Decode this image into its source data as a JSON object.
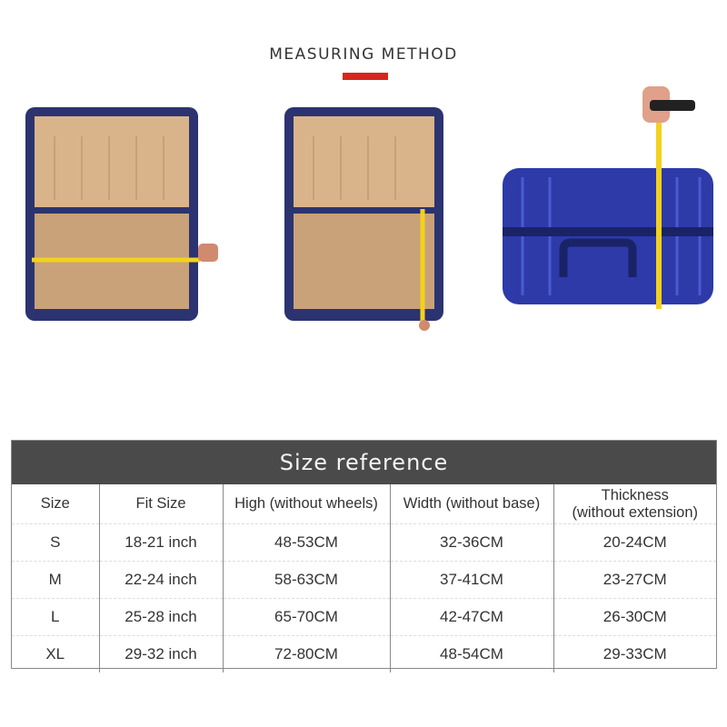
{
  "header": {
    "title": "MEASURING METHOD",
    "accent_color": "#d7261e"
  },
  "photos": [
    {
      "name": "measure-width-open-suitcase"
    },
    {
      "name": "measure-height-open-suitcase"
    },
    {
      "name": "measure-thickness-closed-suitcase"
    }
  ],
  "size_table": {
    "title": "Size reference",
    "columns": [
      "Size",
      "Fit Size",
      "High (without wheels)",
      "Width (without base)",
      "Thickness\n(without extension)"
    ],
    "rows": [
      [
        "S",
        "18-21 inch",
        "48-53CM",
        "32-36CM",
        "20-24CM"
      ],
      [
        "M",
        "22-24 inch",
        "58-63CM",
        "37-41CM",
        "23-27CM"
      ],
      [
        "L",
        "25-28 inch",
        "65-70CM",
        "42-47CM",
        "26-30CM"
      ],
      [
        "XL",
        "29-32 inch",
        "72-80CM",
        "48-54CM",
        "29-33CM"
      ]
    ]
  }
}
